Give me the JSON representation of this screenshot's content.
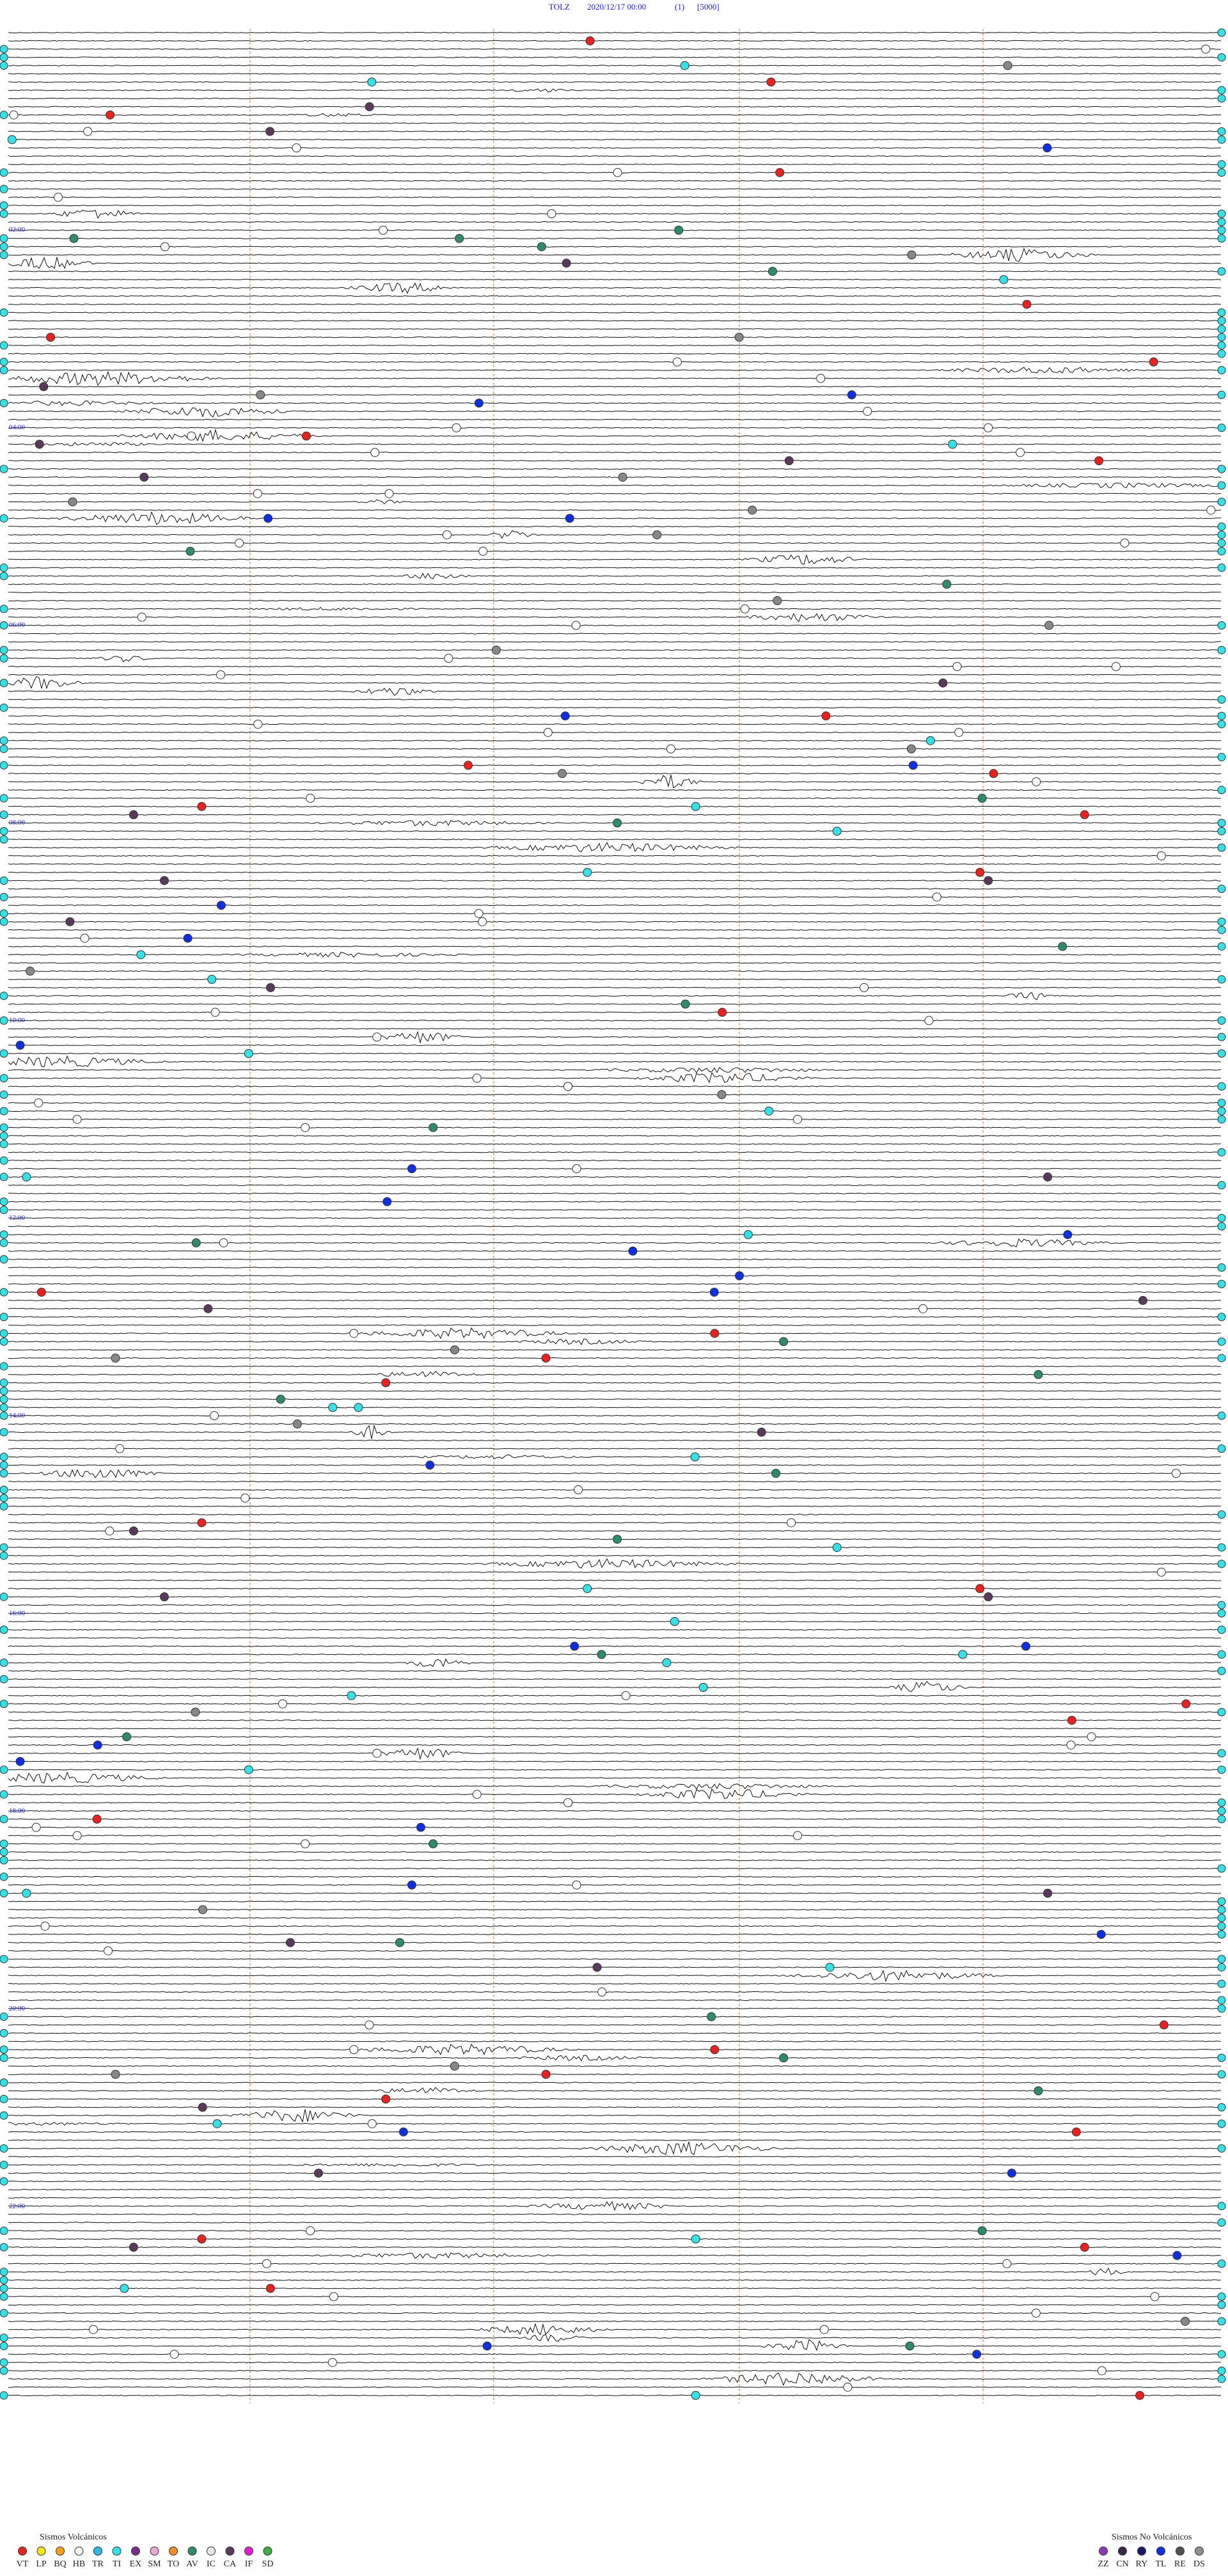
{
  "header": {
    "station": "TOLZ",
    "datetime": "2020/12/17 00:00",
    "channel": "(1)",
    "scale": "[5000]"
  },
  "hour_labels": [
    "02:00",
    "04:00",
    "06:00",
    "08:00",
    "10:00",
    "12:00",
    "14:00",
    "16:00",
    "18:00",
    "20:00",
    "22:00"
  ],
  "legend_volcanic": {
    "title": "Sismos Volcánicos",
    "items": [
      {
        "label": "VT",
        "color": "#e8231f"
      },
      {
        "label": "LP",
        "color": "#f5e611"
      },
      {
        "label": "BQ",
        "color": "#f7a11a"
      },
      {
        "label": "HB",
        "color": "#f2f2f2"
      },
      {
        "label": "TR",
        "color": "#2fb9e6"
      },
      {
        "label": "TI",
        "color": "#35e0e6"
      },
      {
        "label": "EX",
        "color": "#7b2d8e"
      },
      {
        "label": "SM",
        "color": "#e6a6d6"
      },
      {
        "label": "TO",
        "color": "#f28c28"
      },
      {
        "label": "AV",
        "color": "#2e8b6e"
      },
      {
        "label": "IC",
        "color": "#e6e6e6"
      },
      {
        "label": "CA",
        "color": "#5a3a5a"
      },
      {
        "label": "IF",
        "color": "#e020d0"
      },
      {
        "label": "SD",
        "color": "#3cb043"
      }
    ]
  },
  "legend_nonvolcanic": {
    "title": "Sismos No Volcánicos",
    "items": [
      {
        "label": "ZZ",
        "color": "#8a3ab9"
      },
      {
        "label": "CN",
        "color": "#3a2a4a"
      },
      {
        "label": "RY",
        "color": "#1a1a6a"
      },
      {
        "label": "TL",
        "color": "#1030e0"
      },
      {
        "label": "RE",
        "color": "#505050"
      },
      {
        "label": "DS",
        "color": "#909090"
      }
    ]
  }
}
